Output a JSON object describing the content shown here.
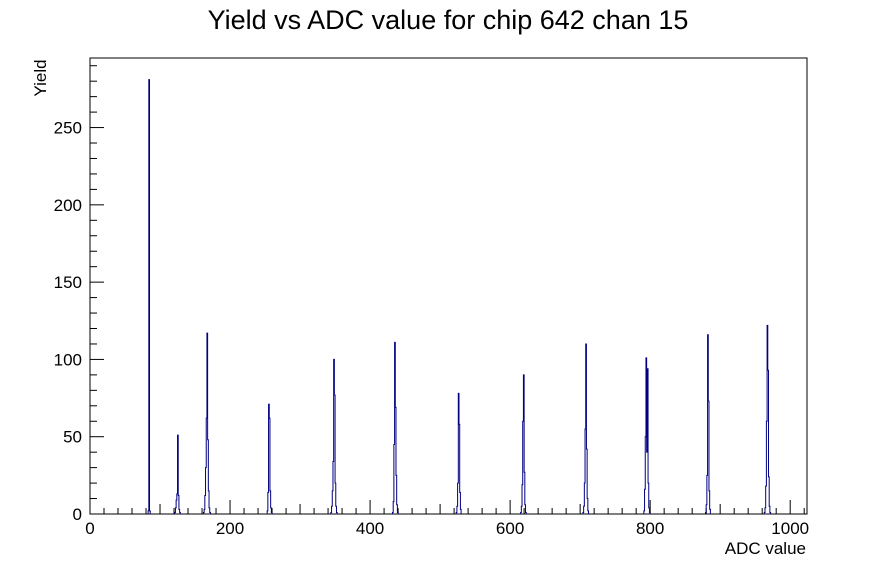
{
  "chart_data": {
    "type": "histogram",
    "title": "Yield vs ADC value for chip 642 chan 15",
    "xlabel": "ADC value",
    "ylabel": "Yield",
    "xlim": [
      0,
      1024
    ],
    "ylim": [
      0,
      295
    ],
    "x_ticks": [
      0,
      200,
      400,
      600,
      800,
      1000
    ],
    "y_ticks": [
      0,
      50,
      100,
      150,
      200,
      250
    ],
    "line_color": "#000080",
    "grid": false,
    "legend": "none",
    "bin_width": 1,
    "bins": [
      [
        83,
        2
      ],
      [
        84,
        281
      ],
      [
        85,
        2
      ],
      [
        121,
        1
      ],
      [
        122,
        4
      ],
      [
        123,
        9
      ],
      [
        124,
        13
      ],
      [
        125,
        51
      ],
      [
        126,
        12
      ],
      [
        127,
        3
      ],
      [
        128,
        1
      ],
      [
        162,
        1
      ],
      [
        163,
        3
      ],
      [
        164,
        12
      ],
      [
        165,
        30
      ],
      [
        166,
        62
      ],
      [
        167,
        117
      ],
      [
        168,
        48
      ],
      [
        169,
        15
      ],
      [
        170,
        4
      ],
      [
        171,
        1
      ],
      [
        253,
        2
      ],
      [
        254,
        14
      ],
      [
        255,
        71
      ],
      [
        256,
        62
      ],
      [
        257,
        15
      ],
      [
        258,
        4
      ],
      [
        259,
        1
      ],
      [
        344,
        1
      ],
      [
        345,
        5
      ],
      [
        346,
        15
      ],
      [
        347,
        34
      ],
      [
        348,
        100
      ],
      [
        349,
        77
      ],
      [
        350,
        20
      ],
      [
        351,
        5
      ],
      [
        352,
        1
      ],
      [
        432,
        1
      ],
      [
        433,
        8
      ],
      [
        434,
        45
      ],
      [
        435,
        111
      ],
      [
        436,
        69
      ],
      [
        437,
        25
      ],
      [
        438,
        6
      ],
      [
        439,
        1
      ],
      [
        523,
        1
      ],
      [
        524,
        5
      ],
      [
        525,
        20
      ],
      [
        526,
        78
      ],
      [
        527,
        58
      ],
      [
        528,
        14
      ],
      [
        529,
        3
      ],
      [
        615,
        1
      ],
      [
        616,
        5
      ],
      [
        617,
        19
      ],
      [
        618,
        60
      ],
      [
        619,
        90
      ],
      [
        620,
        27
      ],
      [
        621,
        6
      ],
      [
        622,
        1
      ],
      [
        704,
        1
      ],
      [
        705,
        5
      ],
      [
        706,
        20
      ],
      [
        707,
        55
      ],
      [
        708,
        110
      ],
      [
        709,
        42
      ],
      [
        710,
        10
      ],
      [
        711,
        2
      ],
      [
        791,
        2
      ],
      [
        792,
        16
      ],
      [
        793,
        50
      ],
      [
        794,
        101
      ],
      [
        795,
        40
      ],
      [
        796,
        94
      ],
      [
        797,
        20
      ],
      [
        798,
        4
      ],
      [
        799,
        1
      ],
      [
        879,
        1
      ],
      [
        880,
        6
      ],
      [
        881,
        25
      ],
      [
        882,
        116
      ],
      [
        883,
        73
      ],
      [
        884,
        15
      ],
      [
        885,
        3
      ],
      [
        963,
        1
      ],
      [
        964,
        4
      ],
      [
        965,
        18
      ],
      [
        966,
        60
      ],
      [
        967,
        122
      ],
      [
        968,
        93
      ],
      [
        969,
        24
      ],
      [
        970,
        5
      ],
      [
        971,
        1
      ]
    ]
  }
}
